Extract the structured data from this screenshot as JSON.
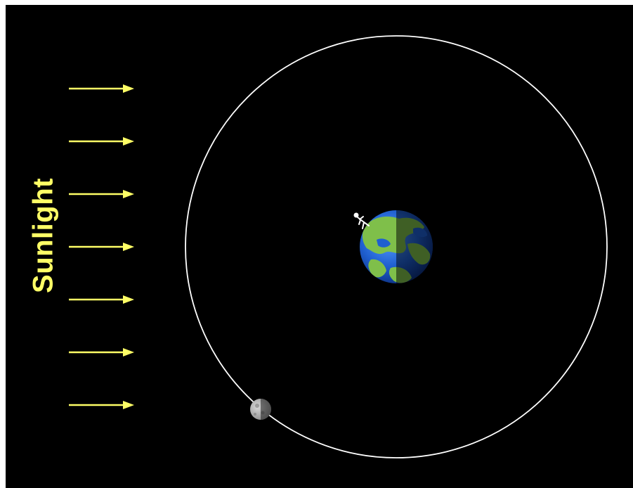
{
  "diagram": {
    "sunlight_label": "Sunlight",
    "sunlight_color": "#ffff66",
    "background_color": "#000000",
    "orbit_color": "#ffffff",
    "arrow_count": 7
  },
  "icons": {
    "observer": "stick-figure-icon"
  }
}
